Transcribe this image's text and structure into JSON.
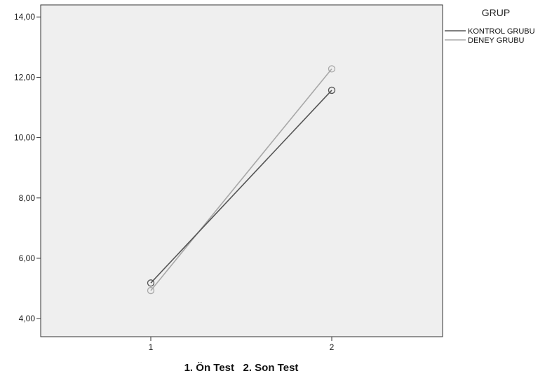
{
  "chart_data": {
    "type": "line",
    "title": "",
    "xlabel": "1. Ön Test   2. Son Test",
    "ylabel": "",
    "categories": [
      "1",
      "2"
    ],
    "ylim": [
      3.4,
      14.4
    ],
    "yticks": [
      4,
      6,
      8,
      10,
      12,
      14
    ],
    "ytick_labels": [
      "4,00",
      "6,00",
      "8,00",
      "10,00",
      "12,00",
      "14,00"
    ],
    "grid": false,
    "plot_background": "#efefef",
    "legend": {
      "title": "GRUP",
      "placement": "top-right, outside plot"
    },
    "series": [
      {
        "name": "KONTROL GRUBU",
        "color": "#555555",
        "values": [
          5.18,
          11.57
        ]
      },
      {
        "name": "DENEY GRUBU",
        "color": "#a8a8a8",
        "values": [
          4.93,
          12.28
        ]
      }
    ]
  }
}
